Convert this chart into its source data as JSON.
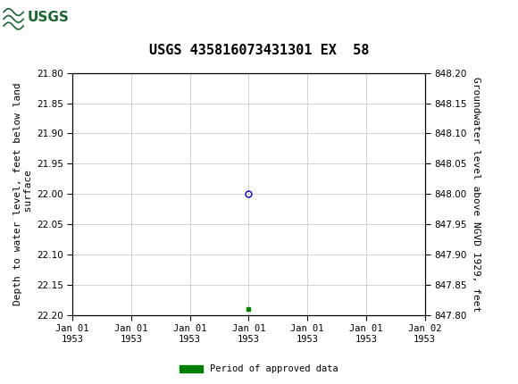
{
  "title": "USGS 435816073431301 EX  58",
  "left_ylabel": "Depth to water level, feet below land\n surface",
  "right_ylabel": "Groundwater level above NGVD 1929, feet",
  "ylim_left_top": 21.8,
  "ylim_left_bottom": 22.2,
  "ylim_right_top": 848.2,
  "ylim_right_bottom": 847.8,
  "yticks_left": [
    21.8,
    21.85,
    21.9,
    21.95,
    22.0,
    22.05,
    22.1,
    22.15,
    22.2
  ],
  "yticks_right": [
    848.2,
    848.15,
    848.1,
    848.05,
    848.0,
    847.95,
    847.9,
    847.85,
    847.8
  ],
  "xlim_days": [
    -3,
    3
  ],
  "data_point_x_day": 0.0,
  "data_point_y": 22.0,
  "data_point_color": "#0000cc",
  "green_marker_x_day": 0.0,
  "green_marker_y": 22.19,
  "green_marker_color": "#008000",
  "header_color": "#1a6630",
  "header_text_color": "#ffffff",
  "bg_color": "#ffffff",
  "grid_color": "#c0c0c0",
  "tick_label_color": "#000000",
  "title_fontsize": 11,
  "axis_label_fontsize": 8,
  "tick_fontsize": 7.5,
  "legend_label": "Period of approved data",
  "legend_color": "#008000",
  "font_family": "monospace",
  "xtick_offsets": [
    -3,
    -2,
    -1,
    0,
    1,
    2,
    3
  ],
  "xtick_labels": [
    "Jan 01\n1953",
    "Jan 01\n1953",
    "Jan 01\n1953",
    "Jan 01\n1953",
    "Jan 01\n1953",
    "Jan 01\n1953",
    "Jan 02\n1953"
  ]
}
